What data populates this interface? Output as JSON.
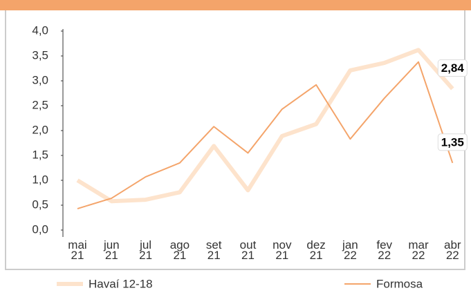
{
  "chart_data": {
    "type": "line",
    "categories": [
      "mai 21",
      "jun 21",
      "jul 21",
      "ago 21",
      "set 21",
      "out 21",
      "nov 21",
      "dez 21",
      "jan 22",
      "fev 22",
      "mar 22",
      "abr 22"
    ],
    "series": [
      {
        "name": "Havaí 12-18",
        "color": "#fde3cc",
        "values": [
          1.0,
          0.58,
          0.61,
          0.76,
          1.69,
          0.8,
          1.89,
          2.13,
          3.21,
          3.36,
          3.62,
          2.84
        ],
        "value_labels": [
          null,
          null,
          null,
          null,
          null,
          null,
          null,
          null,
          null,
          null,
          null,
          "2,84"
        ]
      },
      {
        "name": "Formosa",
        "color": "#f4a46a",
        "values": [
          0.43,
          0.64,
          1.07,
          1.35,
          2.08,
          1.55,
          2.43,
          2.92,
          1.83,
          2.65,
          3.38,
          1.35
        ],
        "value_labels": [
          null,
          null,
          null,
          null,
          null,
          null,
          null,
          null,
          null,
          null,
          null,
          "1,35"
        ]
      }
    ],
    "ylim": [
      0,
      4
    ],
    "yticks": [
      {
        "value": 0,
        "label": "0,0"
      },
      {
        "value": 0.5,
        "label": "0,5"
      },
      {
        "value": 1,
        "label": "1,0"
      },
      {
        "value": 1.5,
        "label": "1,5"
      },
      {
        "value": 2,
        "label": "2,0"
      },
      {
        "value": 2.5,
        "label": "2,5"
      },
      {
        "value": 3,
        "label": "3,0"
      },
      {
        "value": 3.5,
        "label": "3,5"
      },
      {
        "value": 4,
        "label": "4,0"
      }
    ]
  }
}
